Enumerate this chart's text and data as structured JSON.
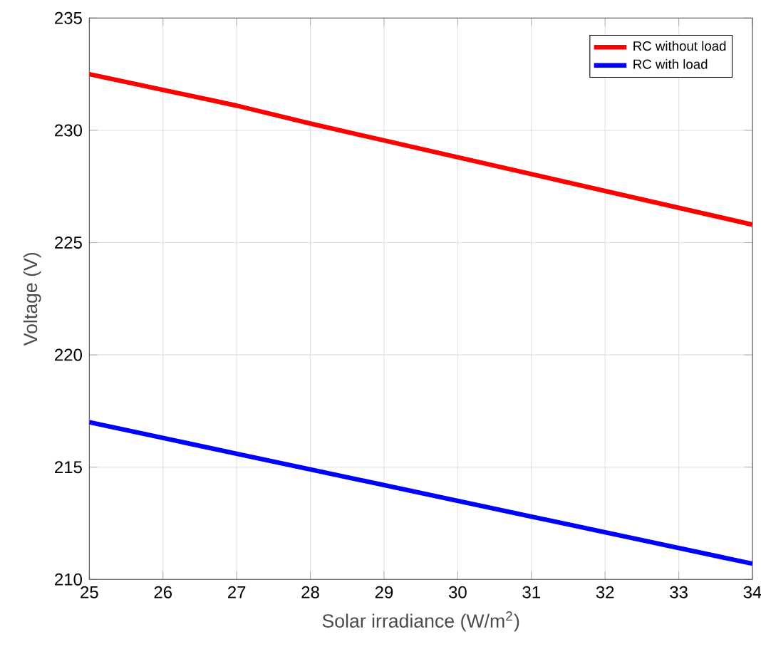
{
  "chart_data": {
    "type": "line",
    "xlabel": "Solar irradiance (W/m$^{2}$)",
    "ylabel": "Voltage (V)",
    "x": [
      25,
      27,
      28,
      30,
      32,
      34
    ],
    "series": [
      {
        "name": "RC without load",
        "color": "#ff0000",
        "values": [
          232.5,
          231.1,
          230.3,
          228.8,
          227.3,
          225.8
        ]
      },
      {
        "name": "RC with load",
        "color": "#0000ff",
        "x": [
          25,
          27,
          29,
          31,
          34
        ],
        "values": [
          217,
          215.6,
          214.2,
          212.8,
          210.7
        ]
      }
    ],
    "xlim": [
      25,
      34
    ],
    "ylim": [
      210,
      235
    ],
    "xticks": [
      25,
      26,
      27,
      28,
      29,
      30,
      31,
      32,
      33,
      34
    ],
    "yticks": [
      210,
      215,
      220,
      225,
      230,
      235
    ],
    "grid": true,
    "legend": "top right",
    "marker": "none",
    "line_style": "solid"
  }
}
